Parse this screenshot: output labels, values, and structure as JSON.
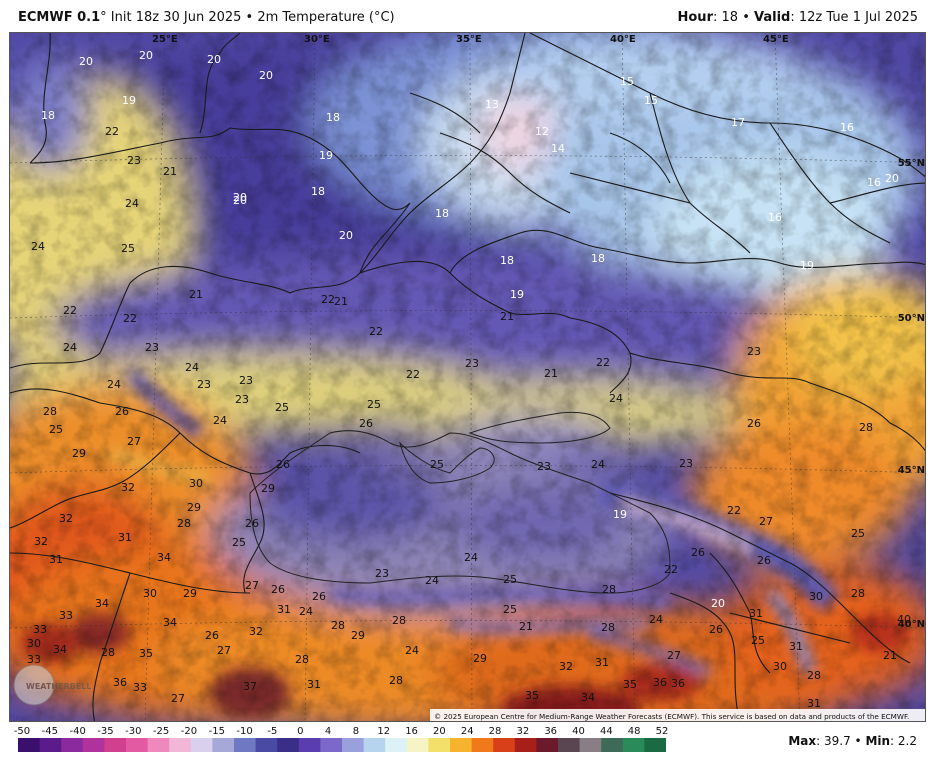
{
  "header": {
    "model": "ECMWF 0.1",
    "degree": "°",
    "init": "Init 18z 30 Jun 2025",
    "sep": "•",
    "field": "2m Temperature (°C)",
    "hour_label": "Hour",
    "hour_value": ": 18",
    "valid_label": "Valid",
    "valid_value": ": 12z Tue 1 Jul 2025"
  },
  "copyright": "© 2025 European Centre for Medium-Range Weather Forecasts (ECMWF). This service is based on data and products of the ECMWF.",
  "lon_labels": [
    "25°E",
    "30°E",
    "35°E",
    "40°E",
    "45°E"
  ],
  "lat_labels": [
    "55°N",
    "50°N",
    "45°N",
    "40°N"
  ],
  "watermark_text": "WEATHERBELL",
  "temps": [
    {
      "v": "20"
    },
    {
      "v": "20"
    },
    {
      "v": "20"
    },
    {
      "v": "20"
    },
    {
      "v": "18"
    },
    {
      "v": "19"
    },
    {
      "v": "18"
    },
    {
      "v": "13"
    },
    {
      "v": "12"
    },
    {
      "v": "14"
    },
    {
      "v": "15"
    },
    {
      "v": "15"
    },
    {
      "v": "17"
    },
    {
      "v": "16"
    },
    {
      "v": "16"
    },
    {
      "v": "20"
    },
    {
      "v": "22"
    },
    {
      "v": "23"
    },
    {
      "v": "21"
    },
    {
      "v": "19"
    },
    {
      "v": "18"
    },
    {
      "v": "20"
    },
    {
      "v": "20"
    },
    {
      "v": "24"
    },
    {
      "v": "24"
    },
    {
      "v": "25"
    },
    {
      "v": "18"
    },
    {
      "v": "20"
    },
    {
      "v": "16"
    },
    {
      "v": "18"
    },
    {
      "v": "18"
    },
    {
      "v": "19"
    },
    {
      "v": "19"
    },
    {
      "v": "21"
    },
    {
      "v": "22"
    },
    {
      "v": "21"
    },
    {
      "v": "22"
    },
    {
      "v": "22"
    },
    {
      "v": "21"
    },
    {
      "v": "24"
    },
    {
      "v": "23"
    },
    {
      "v": "22"
    },
    {
      "v": "22"
    },
    {
      "v": "21"
    },
    {
      "v": "22"
    },
    {
      "v": "23"
    },
    {
      "v": "24"
    },
    {
      "v": "24"
    },
    {
      "v": "23"
    },
    {
      "v": "23"
    },
    {
      "v": "23"
    },
    {
      "v": "25"
    },
    {
      "v": "25"
    },
    {
      "v": "23"
    },
    {
      "v": "24"
    },
    {
      "v": "26"
    },
    {
      "v": "26"
    },
    {
      "v": "28"
    },
    {
      "v": "28"
    },
    {
      "v": "26"
    },
    {
      "v": "24"
    },
    {
      "v": "27"
    },
    {
      "v": "25"
    },
    {
      "v": "25"
    },
    {
      "v": "29"
    },
    {
      "v": "26"
    },
    {
      "v": "23"
    },
    {
      "v": "24"
    },
    {
      "v": "23"
    },
    {
      "v": "32"
    },
    {
      "v": "30"
    },
    {
      "v": "29"
    },
    {
      "v": "29"
    },
    {
      "v": "28"
    },
    {
      "v": "26"
    },
    {
      "v": "25"
    },
    {
      "v": "19"
    },
    {
      "v": "22"
    },
    {
      "v": "27"
    },
    {
      "v": "25"
    },
    {
      "v": "32"
    },
    {
      "v": "31"
    },
    {
      "v": "32"
    },
    {
      "v": "34"
    },
    {
      "v": "31"
    },
    {
      "v": "24"
    },
    {
      "v": "26"
    },
    {
      "v": "24"
    },
    {
      "v": "25"
    },
    {
      "v": "22"
    },
    {
      "v": "24"
    },
    {
      "v": "26"
    },
    {
      "v": "23"
    },
    {
      "v": "28"
    },
    {
      "v": "27"
    },
    {
      "v": "26"
    },
    {
      "v": "33"
    },
    {
      "v": "34"
    },
    {
      "v": "30"
    },
    {
      "v": "29"
    },
    {
      "v": "31"
    },
    {
      "v": "26"
    },
    {
      "v": "25"
    },
    {
      "v": "20"
    },
    {
      "v": "31"
    },
    {
      "v": "30"
    },
    {
      "v": "28"
    },
    {
      "v": "33"
    },
    {
      "v": "34"
    },
    {
      "v": "32"
    },
    {
      "v": "28"
    },
    {
      "v": "29"
    },
    {
      "v": "28"
    },
    {
      "v": "21"
    },
    {
      "v": "28"
    },
    {
      "v": "24"
    },
    {
      "v": "26"
    },
    {
      "v": "25"
    },
    {
      "v": "31"
    },
    {
      "v": "40"
    },
    {
      "v": "34"
    },
    {
      "v": "26"
    },
    {
      "v": "35"
    },
    {
      "v": "30"
    },
    {
      "v": "28"
    },
    {
      "v": "27"
    },
    {
      "v": "28"
    },
    {
      "v": "24"
    },
    {
      "v": "29"
    },
    {
      "v": "27"
    },
    {
      "v": "21"
    },
    {
      "v": "36"
    },
    {
      "v": "33"
    },
    {
      "v": "27"
    },
    {
      "v": "37"
    },
    {
      "v": "31"
    },
    {
      "v": "28"
    },
    {
      "v": "32"
    },
    {
      "v": "31"
    },
    {
      "v": "28"
    },
    {
      "v": "30"
    },
    {
      "v": "35"
    },
    {
      "v": "34"
    },
    {
      "v": "35"
    },
    {
      "v": "36"
    },
    {
      "v": "36"
    },
    {
      "v": "31"
    },
    {
      "v": "33"
    }
  ],
  "colorbar": {
    "ticks": [
      "-50",
      "-45",
      "-40",
      "-35",
      "-30",
      "-25",
      "-20",
      "-15",
      "-10",
      "-5",
      "0",
      "4",
      "8",
      "12",
      "16",
      "20",
      "24",
      "28",
      "32",
      "36",
      "40",
      "44",
      "48",
      "52"
    ],
    "colors": [
      "#3a0f6e",
      "#5b1b8a",
      "#8a2a9e",
      "#b0329c",
      "#d0408e",
      "#e45aa2",
      "#ee88bd",
      "#f2b6d6",
      "#d8d0ec",
      "#a6a8d8",
      "#6f78c2",
      "#4a4aa4",
      "#3a2e88",
      "#5a3eb0",
      "#7c68c8",
      "#9aa0dc",
      "#b6d4ee",
      "#ddf2f6",
      "#f6f4c4",
      "#f2e06a",
      "#f6b42e",
      "#f07a1a",
      "#d8401a",
      "#a81e18",
      "#6a1a2a",
      "#5a4650",
      "#8a7e86",
      "#3e6a58",
      "#2a8a5a",
      "#1a6a44"
    ]
  },
  "maxmin": {
    "max_label": "Max",
    "max_value": ": 39.7",
    "sep": "•",
    "min_label": "Min",
    "min_value": ": 2.2"
  }
}
